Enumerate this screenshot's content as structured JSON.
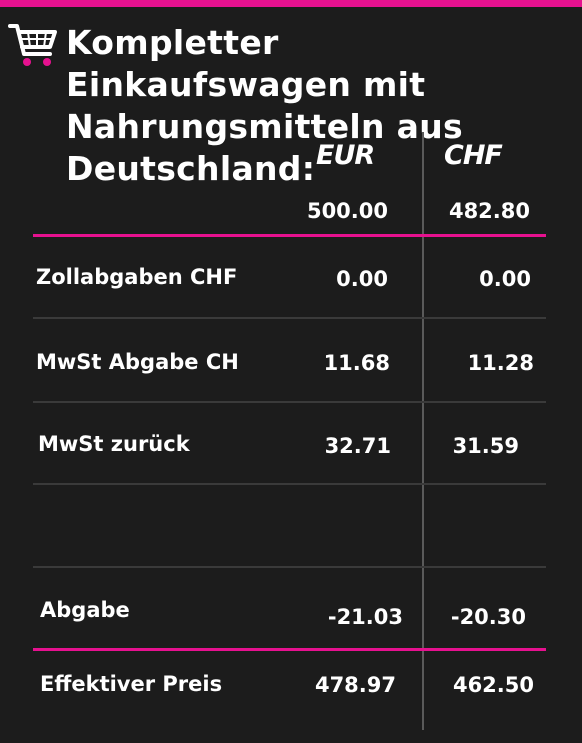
{
  "title": "Kompletter Einkaufswagen mit Nahrungsmitteln aus Deutschland:",
  "icon": "shopping-cart-icon",
  "colors": {
    "accent": "#e6118f",
    "background": "#1c1c1c",
    "text": "#ffffff"
  },
  "columns": {
    "eur": "EUR",
    "chf": "CHF"
  },
  "base": {
    "eur": "500.00",
    "chf": "482.80"
  },
  "rows": [
    {
      "label": "Zollabgaben CHF",
      "eur": "0.00",
      "chf": "0.00"
    },
    {
      "label": "MwSt Abgabe CH",
      "eur": "11.68",
      "chf": "11.28"
    },
    {
      "label": "MwSt zurück",
      "eur": "32.71",
      "chf": "31.59"
    },
    {
      "label": "Abgabe",
      "eur": "-21.03",
      "chf": "-20.30"
    },
    {
      "label": "Effektiver Preis",
      "eur": "478.97",
      "chf": "462.50"
    }
  ]
}
